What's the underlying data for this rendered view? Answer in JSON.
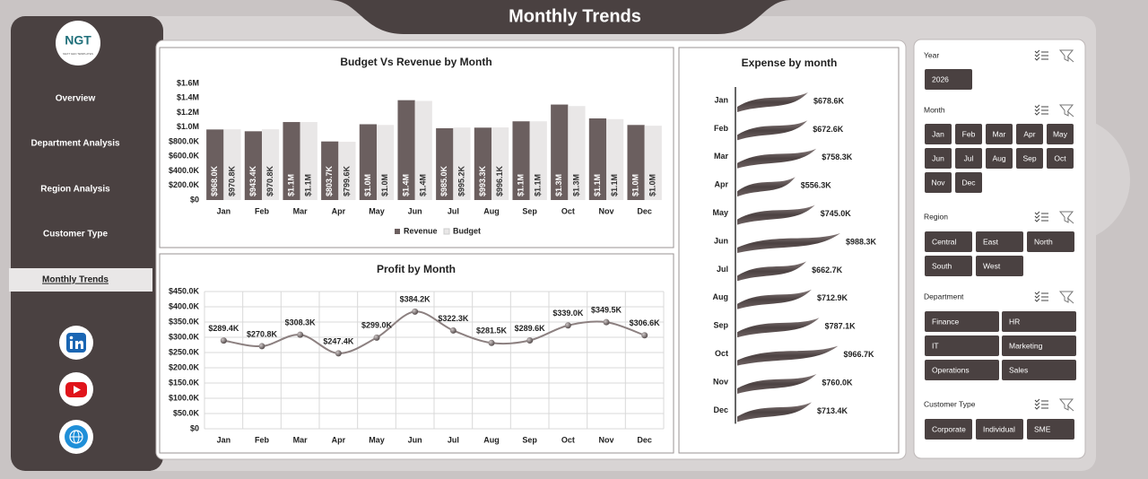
{
  "header": {
    "title": "Monthly Trends"
  },
  "sidebar": {
    "logo": "NGT",
    "tagline": "NEXT GEN TEMPLATES",
    "nav": [
      "Overview",
      "Department Analysis",
      "Region Analysis",
      "Customer Type",
      "Monthly Trends"
    ]
  },
  "chart_data": [
    {
      "type": "bar",
      "title": "Budget Vs Revenue by Month",
      "categories": [
        "Jan",
        "Feb",
        "Mar",
        "Apr",
        "May",
        "Jun",
        "Jul",
        "Aug",
        "Sep",
        "Oct",
        "Nov",
        "Dec"
      ],
      "series": [
        {
          "name": "Revenue",
          "color": "#6b5f5f",
          "values": [
            968000,
            943400,
            1070000,
            803700,
            1040000,
            1370000,
            985000,
            993300,
            1080000,
            1310000,
            1120000,
            1030000
          ],
          "value_labels": [
            "$968.0K",
            "$943.4K",
            "$1.1M",
            "$803.7K",
            "$1.0M",
            "$1.4M",
            "$985.0K",
            "$993.3K",
            "$1.1M",
            "$1.3M",
            "$1.1M",
            "$1.0M"
          ]
        },
        {
          "name": "Budget",
          "color": "#e9e7e7",
          "values": [
            970800,
            970800,
            1070000,
            799600,
            1030000,
            1360000,
            995200,
            996100,
            1080000,
            1290000,
            1110000,
            1020000
          ],
          "value_labels": [
            "$970.8K",
            "$970.8K",
            "$1.1M",
            "$799.6K",
            "$1.0M",
            "$1.4M",
            "$995.2K",
            "$996.1K",
            "$1.1M",
            "$1.3M",
            "$1.1M",
            "$1.0M"
          ]
        }
      ],
      "ylim": [
        0,
        1600000
      ],
      "yticks": [
        {
          "value": 0,
          "label": "$0"
        },
        {
          "value": 200000,
          "label": "$200.0K"
        },
        {
          "value": 400000,
          "label": "$400.0K"
        },
        {
          "value": 600000,
          "label": "$600.0K"
        },
        {
          "value": 800000,
          "label": "$800.0K"
        },
        {
          "value": 1000000,
          "label": "$1.0M"
        },
        {
          "value": 1200000,
          "label": "$1.2M"
        },
        {
          "value": 1400000,
          "label": "$1.4M"
        },
        {
          "value": 1600000,
          "label": "$1.6M"
        }
      ],
      "grid": false,
      "legend": "bottom"
    },
    {
      "type": "line",
      "title": "Profit by Month",
      "categories": [
        "Jan",
        "Feb",
        "Mar",
        "Apr",
        "May",
        "Jun",
        "Jul",
        "Aug",
        "Sep",
        "Oct",
        "Nov",
        "Dec"
      ],
      "values": [
        289400,
        270800,
        308300,
        247400,
        299000,
        384200,
        322300,
        281500,
        289600,
        339000,
        349500,
        306600
      ],
      "value_labels": [
        "$289.4K",
        "$270.8K",
        "$308.3K",
        "$247.4K",
        "$299.0K",
        "$384.2K",
        "$322.3K",
        "$281.5K",
        "$289.6K",
        "$339.0K",
        "$349.5K",
        "$306.6K"
      ],
      "color": "#8c8080",
      "ylim": [
        0,
        450000
      ],
      "yticks": [
        {
          "value": 0,
          "label": "$0"
        },
        {
          "value": 50000,
          "label": "$50.0K"
        },
        {
          "value": 100000,
          "label": "$100.0K"
        },
        {
          "value": 150000,
          "label": "$150.0K"
        },
        {
          "value": 200000,
          "label": "$200.0K"
        },
        {
          "value": 250000,
          "label": "$250.0K"
        },
        {
          "value": 300000,
          "label": "$300.0K"
        },
        {
          "value": 350000,
          "label": "$350.0K"
        },
        {
          "value": 400000,
          "label": "$400.0K"
        },
        {
          "value": 450000,
          "label": "$450.0K"
        }
      ],
      "grid": true
    },
    {
      "type": "bar",
      "title": "Expense by month",
      "horizontal": true,
      "categories": [
        "Jan",
        "Feb",
        "Mar",
        "Apr",
        "May",
        "Jun",
        "Jul",
        "Aug",
        "Sep",
        "Oct",
        "Nov",
        "Dec"
      ],
      "values": [
        678.6,
        672.6,
        758.3,
        556.3,
        745.0,
        988.3,
        662.7,
        712.9,
        787.1,
        966.7,
        760.0,
        713.4
      ],
      "value_labels": [
        "$678.6K",
        "$672.6K",
        "$758.3K",
        "$556.3K",
        "$745.0K",
        "$988.3K",
        "$662.7K",
        "$712.9K",
        "$787.1K",
        "$966.7K",
        "$760.0K",
        "$713.4K"
      ],
      "color": "#5e5353"
    }
  ],
  "slicers": [
    {
      "title": "Year",
      "items": [
        "2026"
      ]
    },
    {
      "title": "Month",
      "items": [
        "Jan",
        "Feb",
        "Mar",
        "Apr",
        "May",
        "Jun",
        "Jul",
        "Aug",
        "Sep",
        "Oct",
        "Nov",
        "Dec"
      ]
    },
    {
      "title": "Region",
      "items": [
        "Central",
        "East",
        "North",
        "South",
        "West"
      ]
    },
    {
      "title": "Department",
      "items": [
        "Finance",
        "HR",
        "IT",
        "Marketing",
        "Operations",
        "Sales"
      ]
    },
    {
      "title": "Customer Type",
      "items": [
        "Corporate",
        "Individual",
        "SME"
      ]
    }
  ]
}
